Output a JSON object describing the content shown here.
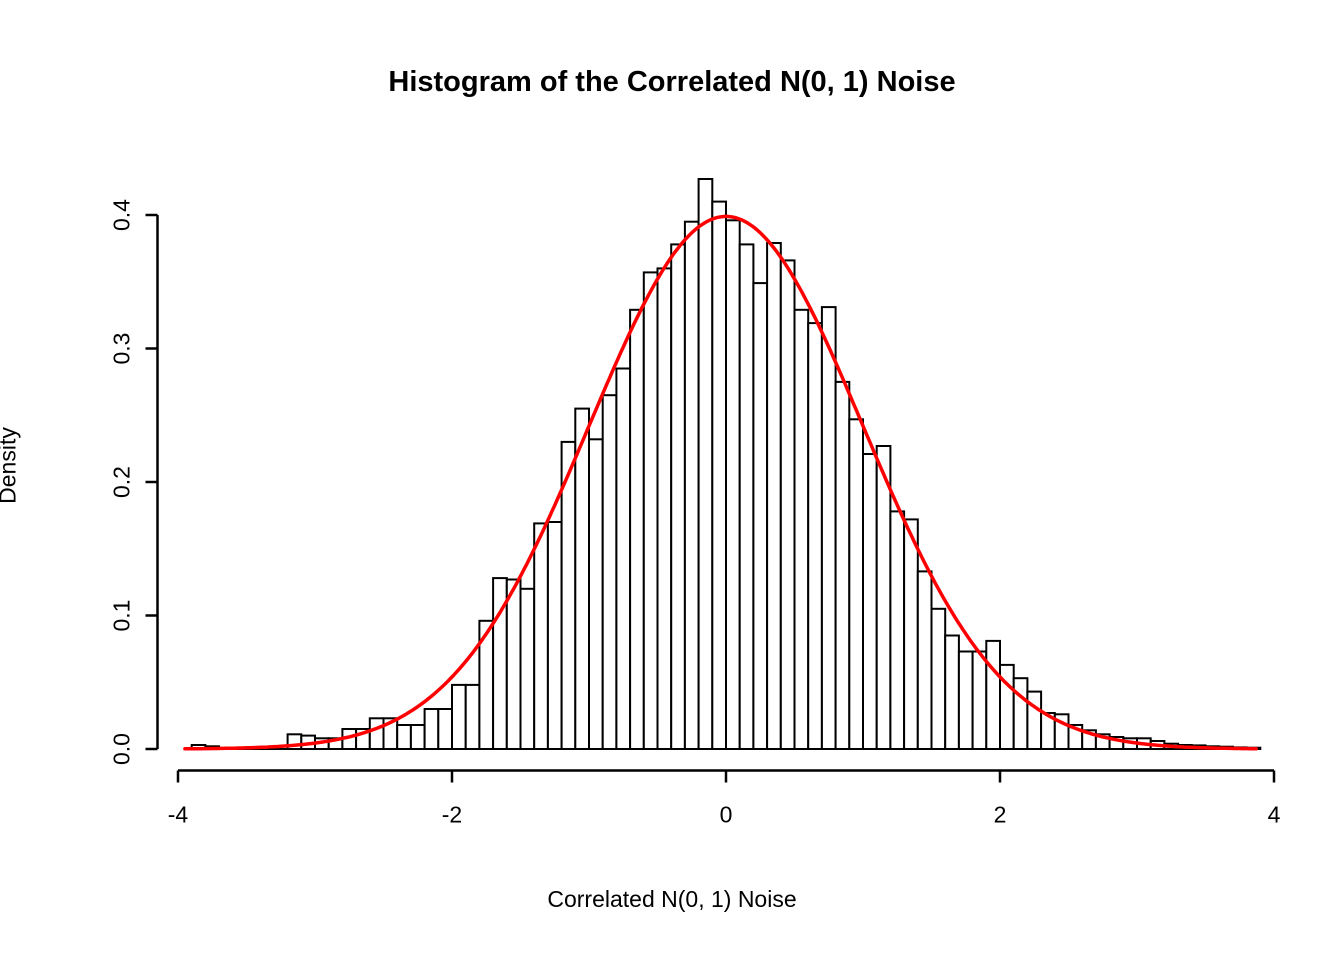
{
  "chart_data": {
    "type": "bar",
    "subtype": "histogram-with-density-curve",
    "title": "Histogram of the Correlated N(0, 1) Noise",
    "xlabel": "Correlated N(0, 1) Noise",
    "ylabel": "Density",
    "x_ticks": [
      "-4",
      "-2",
      "0",
      "2",
      "4"
    ],
    "x_tick_values": [
      -4,
      -2,
      0,
      2,
      4
    ],
    "y_ticks": [
      "0.0",
      "0.1",
      "0.2",
      "0.3",
      "0.4"
    ],
    "y_tick_values": [
      0.0,
      0.1,
      0.2,
      0.3,
      0.4
    ],
    "xlim": [
      -4,
      4
    ],
    "ylim": [
      0,
      0.43
    ],
    "grid": false,
    "legend": "none",
    "bin_width": 0.1,
    "bar_fill": "#ffffff",
    "bar_border": "#000000",
    "bin_left_edges": [
      -3.9,
      -3.8,
      -3.7,
      -3.6,
      -3.5,
      -3.4,
      -3.3,
      -3.2,
      -3.1,
      -3.0,
      -2.9,
      -2.8,
      -2.7,
      -2.6,
      -2.5,
      -2.4,
      -2.3,
      -2.2,
      -2.1,
      -2.0,
      -1.9,
      -1.8,
      -1.7,
      -1.6,
      -1.5,
      -1.4,
      -1.3,
      -1.2,
      -1.1,
      -1.0,
      -0.9,
      -0.8,
      -0.7,
      -0.6,
      -0.5,
      -0.4,
      -0.3,
      -0.2,
      -0.1,
      0.0,
      0.1,
      0.2,
      0.3,
      0.4,
      0.5,
      0.6,
      0.7,
      0.8,
      0.9,
      1.0,
      1.1,
      1.2,
      1.3,
      1.4,
      1.5,
      1.6,
      1.7,
      1.8,
      1.9,
      2.0,
      2.1,
      2.2,
      2.3,
      2.4,
      2.5,
      2.6,
      2.7,
      2.8,
      2.9,
      3.0,
      3.1,
      3.2,
      3.3,
      3.4,
      3.5,
      3.6,
      3.7,
      3.8
    ],
    "densities": [
      0.003,
      0.002,
      0.0,
      0.001,
      0.001,
      0.0015,
      0.002,
      0.011,
      0.01,
      0.008,
      0.008,
      0.015,
      0.015,
      0.023,
      0.023,
      0.018,
      0.018,
      0.03,
      0.03,
      0.048,
      0.048,
      0.096,
      0.128,
      0.127,
      0.12,
      0.169,
      0.17,
      0.23,
      0.255,
      0.232,
      0.265,
      0.285,
      0.329,
      0.357,
      0.36,
      0.378,
      0.395,
      0.427,
      0.41,
      0.396,
      0.378,
      0.349,
      0.379,
      0.366,
      0.329,
      0.319,
      0.331,
      0.275,
      0.247,
      0.221,
      0.227,
      0.178,
      0.172,
      0.133,
      0.105,
      0.085,
      0.073,
      0.073,
      0.081,
      0.063,
      0.053,
      0.043,
      0.027,
      0.026,
      0.018,
      0.014,
      0.011,
      0.009,
      0.008,
      0.008,
      0.006,
      0.004,
      0.003,
      0.0027,
      0.002,
      0.0017,
      0.0012,
      0.001
    ],
    "curve": {
      "name": "standard-normal-density",
      "mean": 0,
      "sd": 1,
      "x_start": -3.95,
      "x_end": 3.88,
      "color": "#ff0000",
      "peak": 0.3989
    }
  },
  "layout_note": "R base graphics style plot, black axes, rotated y tick labels"
}
